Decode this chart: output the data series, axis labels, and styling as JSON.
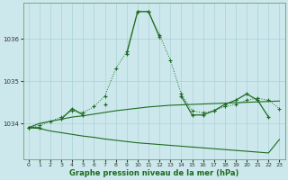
{
  "xlabel": "Graphe pression niveau de la mer (hPa)",
  "hours": [
    0,
    1,
    2,
    3,
    4,
    5,
    6,
    7,
    8,
    9,
    10,
    11,
    12,
    13,
    14,
    15,
    16,
    17,
    18,
    19,
    20,
    21,
    22,
    23
  ],
  "line_dotted": [
    1033.9,
    1033.95,
    1034.05,
    1034.15,
    1034.3,
    1034.25,
    1034.4,
    1034.65,
    1035.3,
    1035.7,
    1036.65,
    1036.65,
    1036.1,
    1035.5,
    1034.7,
    1034.3,
    1034.25,
    1034.3,
    1034.4,
    1034.45,
    1034.55,
    1034.6,
    1034.55,
    1034.35
  ],
  "line_main": [
    1033.9,
    1033.9,
    null,
    1034.1,
    1034.35,
    1034.2,
    null,
    1034.45,
    null,
    1035.65,
    1036.65,
    1036.65,
    1036.05,
    null,
    1034.65,
    1034.2,
    1034.2,
    1034.3,
    1034.45,
    1034.55,
    1034.7,
    1034.55,
    1034.15,
    null
  ],
  "line_rising": [
    1033.9,
    1034.0,
    1034.05,
    1034.1,
    1034.15,
    1034.18,
    1034.22,
    1034.26,
    1034.3,
    1034.33,
    1034.36,
    1034.39,
    1034.41,
    1034.43,
    1034.44,
    1034.45,
    1034.46,
    1034.47,
    1034.48,
    1034.49,
    1034.5,
    1034.51,
    1034.52,
    1034.53
  ],
  "line_declining": [
    1033.9,
    1033.88,
    1033.82,
    1033.78,
    1033.74,
    1033.7,
    1033.67,
    1033.63,
    1033.6,
    1033.57,
    1033.54,
    1033.52,
    1033.5,
    1033.48,
    1033.46,
    1033.44,
    1033.42,
    1033.4,
    1033.38,
    1033.36,
    1033.34,
    1033.32,
    1033.3,
    1033.62
  ],
  "bg_color": "#cce8ec",
  "grid_color": "#aad0d8",
  "line_color": "#1e6b1e",
  "ylim": [
    1033.15,
    1036.85
  ],
  "yticks": [
    1034,
    1035,
    1036
  ],
  "xticks": [
    0,
    1,
    2,
    3,
    4,
    5,
    6,
    7,
    8,
    9,
    10,
    11,
    12,
    13,
    14,
    15,
    16,
    17,
    18,
    19,
    20,
    21,
    22,
    23
  ]
}
